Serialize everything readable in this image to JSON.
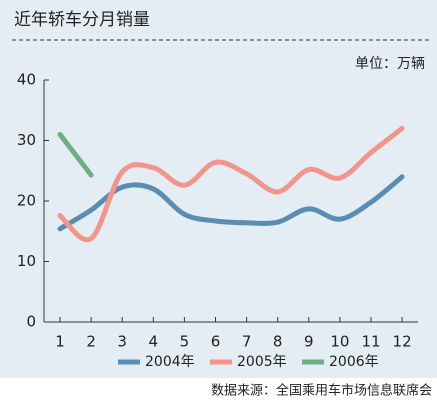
{
  "chart_data": {
    "type": "line",
    "title": "近年轿车分月销量",
    "unit_label": "单位：万辆",
    "source": "数据来源：全国乘用车市场信息联席会",
    "categories": [
      "1",
      "2",
      "3",
      "4",
      "5",
      "6",
      "7",
      "8",
      "9",
      "10",
      "11",
      "12"
    ],
    "series": [
      {
        "name": "2004年",
        "color": "#5b8db3",
        "values": [
          15.4,
          18.5,
          22.3,
          22.0,
          17.8,
          16.7,
          16.4,
          16.5,
          18.7,
          17.0,
          19.8,
          24.0
        ]
      },
      {
        "name": "2005年",
        "color": "#f2958a",
        "values": [
          17.6,
          13.8,
          24.8,
          25.5,
          22.6,
          26.4,
          24.5,
          21.5,
          25.2,
          23.8,
          28.0,
          32.0
        ]
      },
      {
        "name": "2006年",
        "color": "#6fae86",
        "values": [
          31.0,
          24.3,
          null,
          null,
          null,
          null,
          null,
          null,
          null,
          null,
          null,
          null
        ]
      }
    ],
    "ylim": [
      0,
      40
    ],
    "yticks": [
      0,
      10,
      20,
      30,
      40
    ],
    "legend": "bottom"
  }
}
